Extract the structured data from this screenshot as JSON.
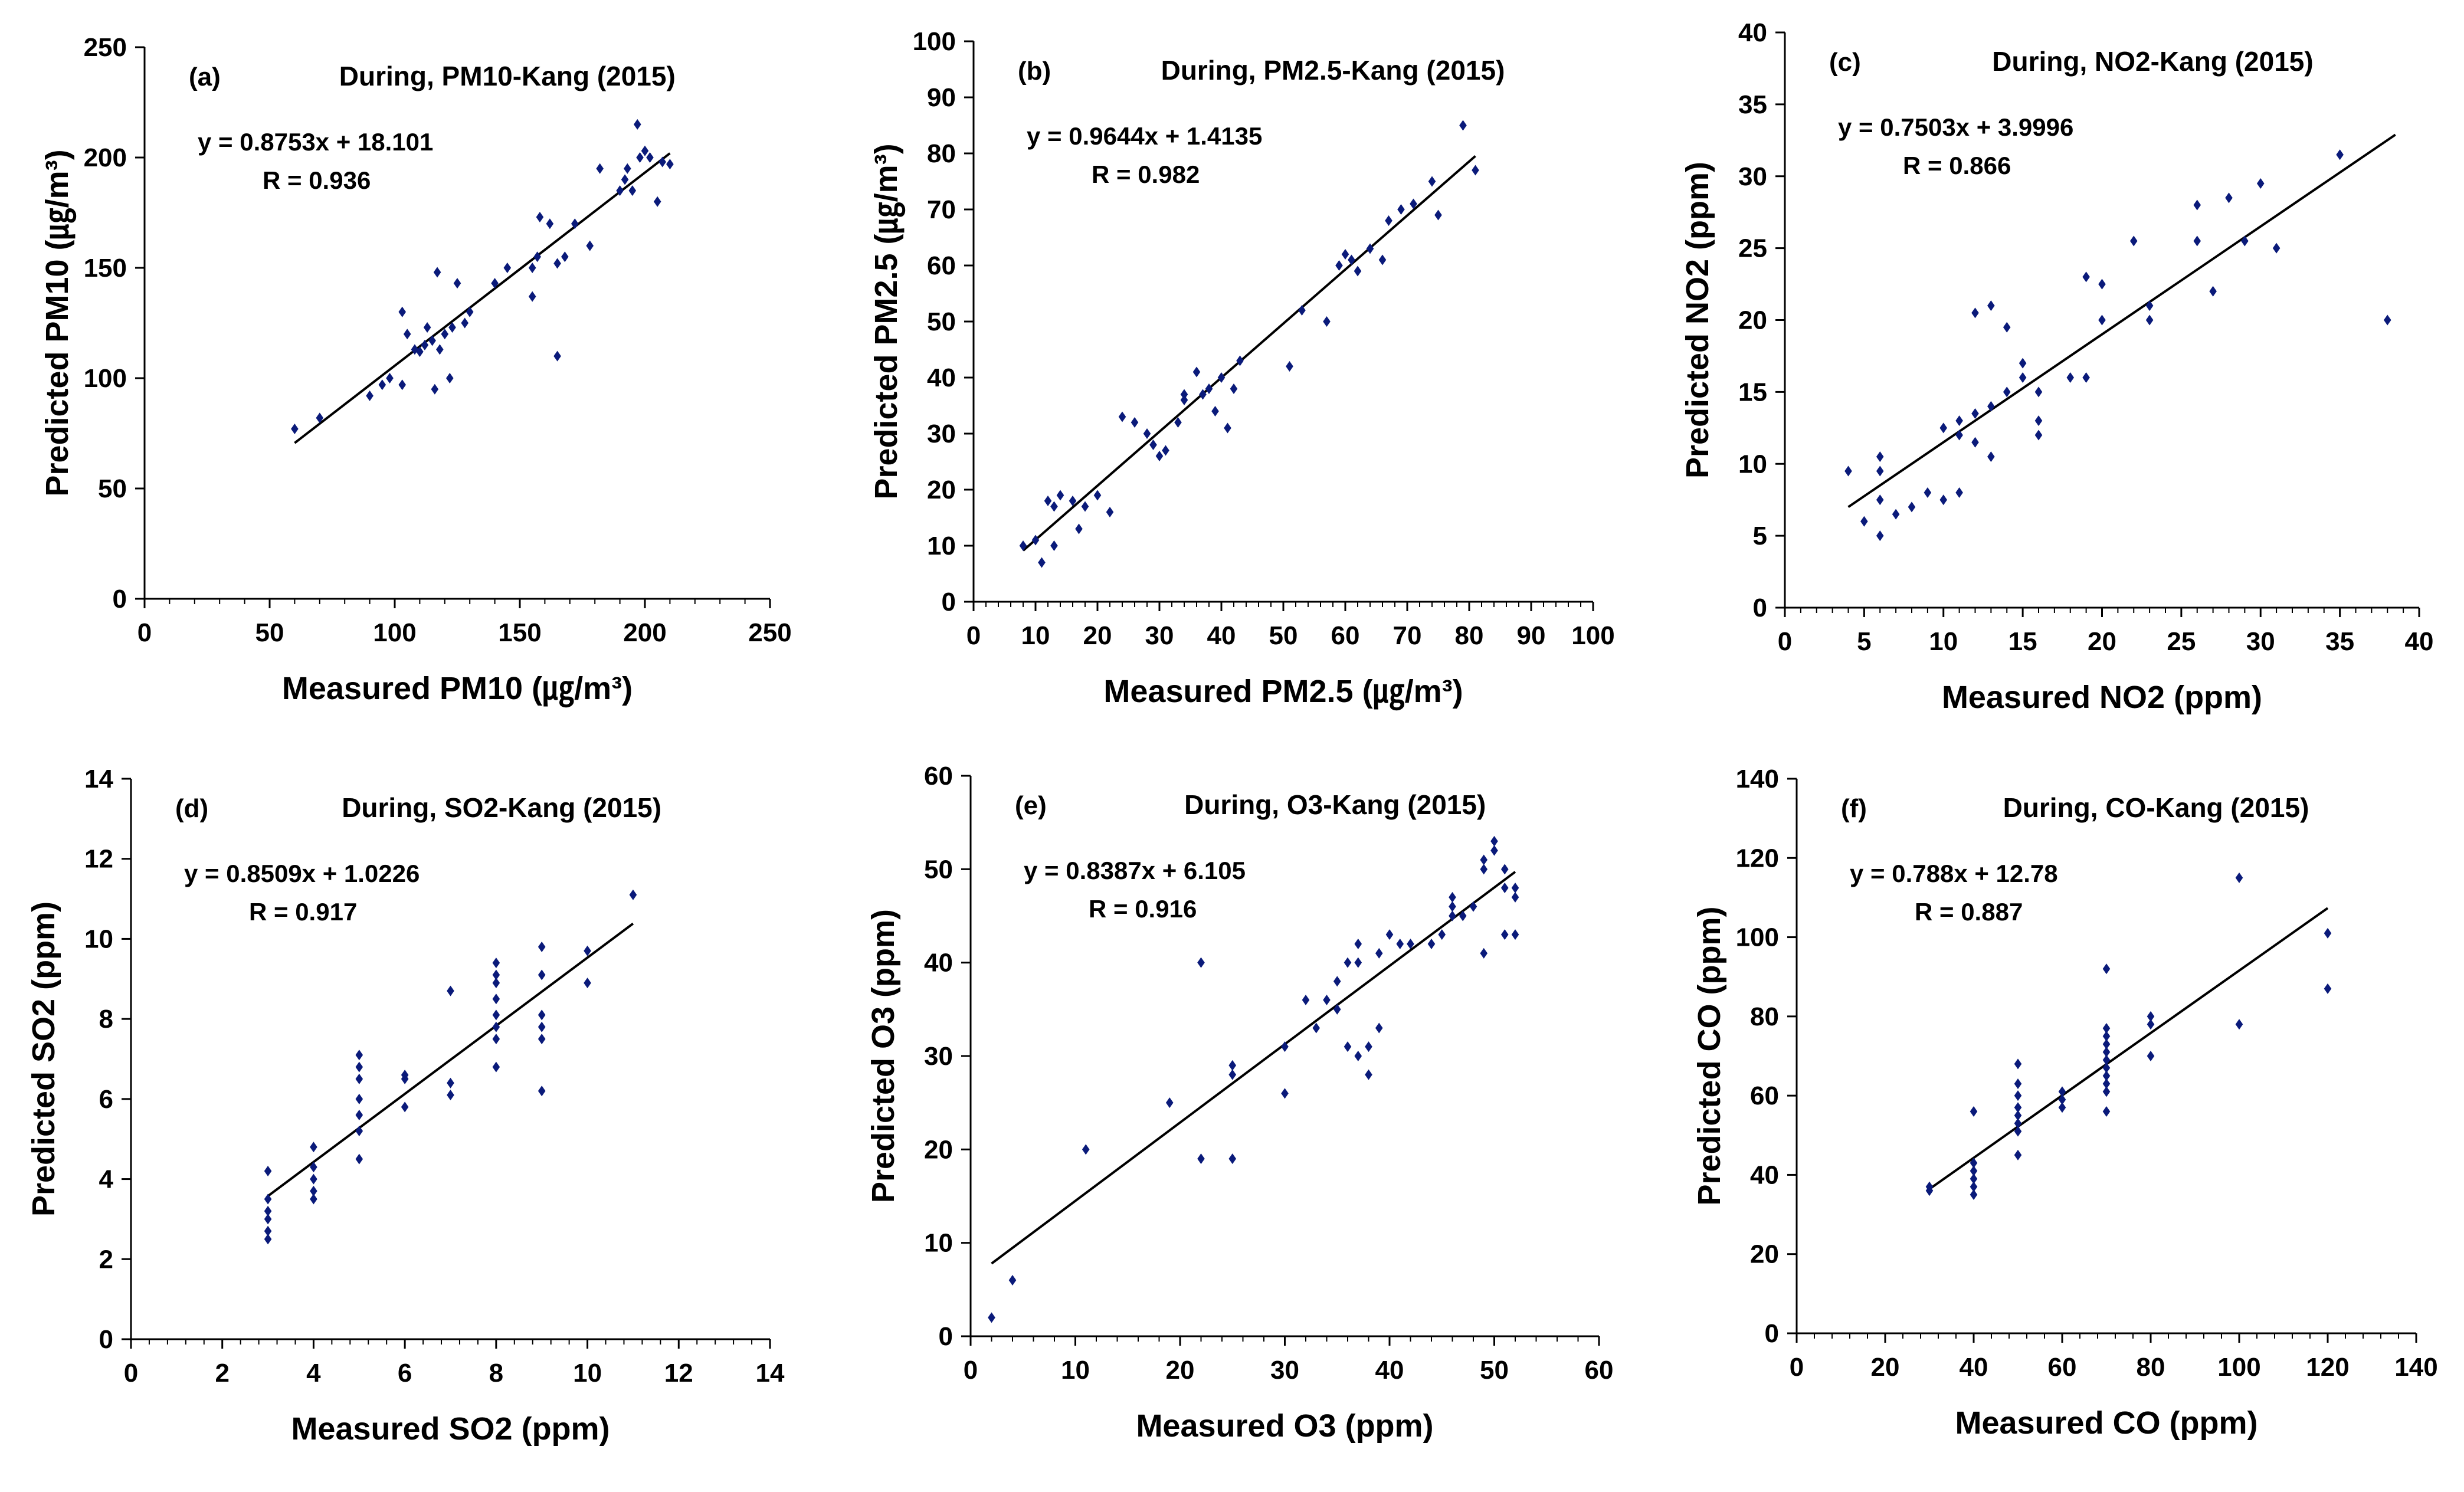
{
  "chart_data": [
    {
      "type": "scatter",
      "tag": "(a)",
      "title": "During, PM10-Kang (2015)",
      "equation": "y = 0.8753x + 18.101",
      "r_label": "R = 0.936",
      "xlabel": "Measured PM10 (㎍/m³)",
      "ylabel": "Predicted PM10 (㎍/m³)",
      "xlim": [
        0,
        250
      ],
      "ylim": [
        0,
        250
      ],
      "xticks": [
        0,
        50,
        100,
        150,
        200,
        250
      ],
      "yticks": [
        0,
        50,
        100,
        150,
        200,
        250
      ],
      "fit": {
        "slope": 0.8753,
        "intercept": 18.101,
        "x_range": [
          60,
          210
        ]
      },
      "points": [
        [
          60,
          77
        ],
        [
          70,
          82
        ],
        [
          90,
          92
        ],
        [
          95,
          97
        ],
        [
          98,
          100
        ],
        [
          103,
          97
        ],
        [
          103,
          130
        ],
        [
          105,
          120
        ],
        [
          108,
          113
        ],
        [
          110,
          112
        ],
        [
          112,
          115
        ],
        [
          113,
          123
        ],
        [
          115,
          117
        ],
        [
          116,
          95
        ],
        [
          117,
          148
        ],
        [
          118,
          113
        ],
        [
          120,
          120
        ],
        [
          122,
          100
        ],
        [
          123,
          123
        ],
        [
          125,
          143
        ],
        [
          128,
          125
        ],
        [
          130,
          130
        ],
        [
          140,
          143
        ],
        [
          145,
          150
        ],
        [
          155,
          137
        ],
        [
          155,
          150
        ],
        [
          157,
          155
        ],
        [
          158,
          173
        ],
        [
          162,
          170
        ],
        [
          165,
          110
        ],
        [
          165,
          152
        ],
        [
          168,
          155
        ],
        [
          172,
          170
        ],
        [
          178,
          160
        ],
        [
          182,
          195
        ],
        [
          190,
          185
        ],
        [
          192,
          190
        ],
        [
          193,
          195
        ],
        [
          195,
          185
        ],
        [
          197,
          215
        ],
        [
          198,
          200
        ],
        [
          200,
          203
        ],
        [
          202,
          200
        ],
        [
          205,
          180
        ],
        [
          207,
          198
        ],
        [
          210,
          197
        ]
      ]
    },
    {
      "type": "scatter",
      "tag": "(b)",
      "title": "During, PM2.5-Kang (2015)",
      "equation": "y = 0.9644x + 1.4135",
      "r_label": "R = 0.982",
      "xlabel": "Measured PM2.5 (㎍/m³)",
      "ylabel": "Predicted PM2.5 (㎍/m³)",
      "xlim": [
        0,
        100
      ],
      "ylim": [
        0,
        100
      ],
      "xticks": [
        0,
        10,
        20,
        30,
        40,
        50,
        60,
        70,
        80,
        90,
        100
      ],
      "yticks": [
        0,
        10,
        20,
        30,
        40,
        50,
        60,
        70,
        80,
        90,
        100
      ],
      "fit": {
        "slope": 0.9644,
        "intercept": 1.4135,
        "x_range": [
          8,
          81
        ]
      },
      "points": [
        [
          8,
          10
        ],
        [
          10,
          11
        ],
        [
          11,
          7
        ],
        [
          12,
          18
        ],
        [
          13,
          10
        ],
        [
          13,
          17
        ],
        [
          14,
          19
        ],
        [
          16,
          18
        ],
        [
          17,
          13
        ],
        [
          18,
          17
        ],
        [
          20,
          19
        ],
        [
          22,
          16
        ],
        [
          24,
          33
        ],
        [
          26,
          32
        ],
        [
          28,
          30
        ],
        [
          29,
          28
        ],
        [
          30,
          26
        ],
        [
          31,
          27
        ],
        [
          33,
          32
        ],
        [
          34,
          36
        ],
        [
          34,
          37
        ],
        [
          36,
          41
        ],
        [
          37,
          37
        ],
        [
          38,
          38
        ],
        [
          39,
          34
        ],
        [
          40,
          40
        ],
        [
          41,
          31
        ],
        [
          42,
          38
        ],
        [
          43,
          43
        ],
        [
          51,
          42
        ],
        [
          53,
          52
        ],
        [
          57,
          50
        ],
        [
          59,
          60
        ],
        [
          60,
          62
        ],
        [
          61,
          61
        ],
        [
          62,
          59
        ],
        [
          64,
          63
        ],
        [
          66,
          61
        ],
        [
          67,
          68
        ],
        [
          69,
          70
        ],
        [
          71,
          71
        ],
        [
          74,
          75
        ],
        [
          75,
          69
        ],
        [
          79,
          85
        ],
        [
          81,
          77
        ]
      ]
    },
    {
      "type": "scatter",
      "tag": "(c)",
      "title": "During, NO2-Kang (2015)",
      "equation": "y = 0.7503x + 3.9996",
      "r_label": "R = 0.866",
      "xlabel": "Measured NO2 (ppm)",
      "ylabel": "Predicted NO2 (ppm)",
      "xlim": [
        0,
        40
      ],
      "ylim": [
        0,
        40
      ],
      "xticks": [
        0,
        5,
        10,
        15,
        20,
        25,
        30,
        35,
        40
      ],
      "yticks": [
        0,
        5,
        10,
        15,
        20,
        25,
        30,
        35,
        40
      ],
      "fit": {
        "slope": 0.7503,
        "intercept": 3.9996,
        "x_range": [
          4,
          38.5
        ]
      },
      "points": [
        [
          4,
          9.5
        ],
        [
          5,
          6
        ],
        [
          6,
          5
        ],
        [
          6,
          7.5
        ],
        [
          6,
          9.5
        ],
        [
          6,
          10.5
        ],
        [
          7,
          6.5
        ],
        [
          8,
          7
        ],
        [
          9,
          8
        ],
        [
          10,
          12.5
        ],
        [
          10,
          7.5
        ],
        [
          11,
          8
        ],
        [
          11,
          12
        ],
        [
          11,
          13
        ],
        [
          12,
          11.5
        ],
        [
          12,
          13.5
        ],
        [
          12,
          20.5
        ],
        [
          13,
          10.5
        ],
        [
          13,
          14
        ],
        [
          13,
          21
        ],
        [
          14,
          15
        ],
        [
          14,
          19.5
        ],
        [
          15,
          16
        ],
        [
          15,
          17
        ],
        [
          16,
          12
        ],
        [
          16,
          13
        ],
        [
          16,
          15
        ],
        [
          18,
          16
        ],
        [
          19,
          23
        ],
        [
          19,
          16
        ],
        [
          20,
          20
        ],
        [
          20,
          22.5
        ],
        [
          22,
          25.5
        ],
        [
          23,
          20
        ],
        [
          23,
          21
        ],
        [
          26,
          25.5
        ],
        [
          26,
          28
        ],
        [
          27,
          22
        ],
        [
          28,
          28.5
        ],
        [
          29,
          25.5
        ],
        [
          30,
          29.5
        ],
        [
          31,
          25
        ],
        [
          35,
          31.5
        ],
        [
          38,
          20
        ]
      ]
    },
    {
      "type": "scatter",
      "tag": "(d)",
      "title": "During, SO2-Kang (2015)",
      "equation": "y = 0.8509x + 1.0226",
      "r_label": "R = 0.917",
      "xlabel": "Measured SO2 (ppm)",
      "ylabel": "Predicted SO2 (ppm)",
      "xlim": [
        0,
        14
      ],
      "ylim": [
        0,
        14
      ],
      "xticks": [
        0,
        2,
        4,
        6,
        8,
        10,
        12,
        14
      ],
      "yticks": [
        0,
        2,
        4,
        6,
        8,
        10,
        12,
        14
      ],
      "fit": {
        "slope": 0.8509,
        "intercept": 1.0226,
        "x_range": [
          3,
          11
        ]
      },
      "points": [
        [
          3,
          2.5
        ],
        [
          3,
          2.7
        ],
        [
          3,
          3.0
        ],
        [
          3,
          3.2
        ],
        [
          3,
          3.5
        ],
        [
          3,
          4.2
        ],
        [
          4,
          3.5
        ],
        [
          4,
          3.7
        ],
        [
          4,
          4.0
        ],
        [
          4,
          4.3
        ],
        [
          4,
          4.8
        ],
        [
          5,
          4.5
        ],
        [
          5,
          5.2
        ],
        [
          5,
          5.6
        ],
        [
          5,
          6.0
        ],
        [
          5,
          6.5
        ],
        [
          5,
          6.8
        ],
        [
          5,
          7.1
        ],
        [
          6,
          5.8
        ],
        [
          6,
          6.5
        ],
        [
          6,
          6.6
        ],
        [
          7,
          6.1
        ],
        [
          7,
          6.4
        ],
        [
          7,
          8.7
        ],
        [
          8,
          6.8
        ],
        [
          8,
          7.5
        ],
        [
          8,
          7.8
        ],
        [
          8,
          8.1
        ],
        [
          8,
          8.5
        ],
        [
          8,
          8.9
        ],
        [
          8,
          9.1
        ],
        [
          8,
          9.4
        ],
        [
          9,
          6.2
        ],
        [
          9,
          7.5
        ],
        [
          9,
          7.8
        ],
        [
          9,
          8.1
        ],
        [
          9,
          9.1
        ],
        [
          9,
          9.8
        ],
        [
          10,
          8.9
        ],
        [
          10,
          9.7
        ],
        [
          11,
          11.1
        ]
      ]
    },
    {
      "type": "scatter",
      "tag": "(e)",
      "title": "During, O3-Kang (2015)",
      "equation": "y = 0.8387x + 6.105",
      "r_label": "R = 0.916",
      "xlabel": "Measured O3 (ppm)",
      "ylabel": "Predicted O3 (ppm)",
      "xlim": [
        0,
        60
      ],
      "ylim": [
        0,
        60
      ],
      "xticks": [
        0,
        10,
        20,
        30,
        40,
        50,
        60
      ],
      "yticks": [
        0,
        10,
        20,
        30,
        40,
        50,
        60
      ],
      "fit": {
        "slope": 0.8387,
        "intercept": 6.105,
        "x_range": [
          2,
          52
        ]
      },
      "points": [
        [
          2,
          2
        ],
        [
          4,
          6
        ],
        [
          11,
          20
        ],
        [
          19,
          25
        ],
        [
          22,
          40
        ],
        [
          22,
          19
        ],
        [
          25,
          28
        ],
        [
          25,
          29
        ],
        [
          25,
          19
        ],
        [
          30,
          26
        ],
        [
          30,
          31
        ],
        [
          32,
          36
        ],
        [
          33,
          33
        ],
        [
          34,
          36
        ],
        [
          35,
          35
        ],
        [
          35,
          38
        ],
        [
          36,
          40
        ],
        [
          36,
          31
        ],
        [
          37,
          40
        ],
        [
          37,
          42
        ],
        [
          37,
          30
        ],
        [
          38,
          31
        ],
        [
          38,
          28
        ],
        [
          39,
          41
        ],
        [
          39,
          33
        ],
        [
          40,
          43
        ],
        [
          41,
          42
        ],
        [
          42,
          42
        ],
        [
          44,
          42
        ],
        [
          45,
          43
        ],
        [
          46,
          45
        ],
        [
          46,
          46
        ],
        [
          46,
          47
        ],
        [
          47,
          45
        ],
        [
          48,
          46
        ],
        [
          49,
          41
        ],
        [
          49,
          50
        ],
        [
          49,
          51
        ],
        [
          50,
          52
        ],
        [
          50,
          53
        ],
        [
          51,
          48
        ],
        [
          51,
          50
        ],
        [
          51,
          43
        ],
        [
          52,
          47
        ],
        [
          52,
          48
        ],
        [
          52,
          43
        ]
      ]
    },
    {
      "type": "scatter",
      "tag": "(f)",
      "title": "During, CO-Kang (2015)",
      "equation": "y = 0.788x + 12.78",
      "r_label": "R = 0.887",
      "xlabel": "Measured CO (ppm)",
      "ylabel": "Predicted CO (ppm)",
      "xlim": [
        0,
        140
      ],
      "ylim": [
        0,
        140
      ],
      "xticks": [
        0,
        20,
        40,
        60,
        80,
        100,
        120,
        140
      ],
      "yticks": [
        0,
        20,
        40,
        60,
        80,
        100,
        120,
        140
      ],
      "fit": {
        "slope": 0.788,
        "intercept": 12.78,
        "x_range": [
          30,
          120
        ]
      },
      "points": [
        [
          30,
          36
        ],
        [
          30,
          37
        ],
        [
          40,
          35
        ],
        [
          40,
          37
        ],
        [
          40,
          39
        ],
        [
          40,
          41
        ],
        [
          40,
          43
        ],
        [
          40,
          56
        ],
        [
          50,
          45
        ],
        [
          50,
          51
        ],
        [
          50,
          53
        ],
        [
          50,
          55
        ],
        [
          50,
          57
        ],
        [
          50,
          60
        ],
        [
          50,
          63
        ],
        [
          50,
          68
        ],
        [
          60,
          57
        ],
        [
          60,
          59
        ],
        [
          60,
          61
        ],
        [
          70,
          56
        ],
        [
          70,
          61
        ],
        [
          70,
          63
        ],
        [
          70,
          65
        ],
        [
          70,
          67
        ],
        [
          70,
          69
        ],
        [
          70,
          71
        ],
        [
          70,
          73
        ],
        [
          70,
          75
        ],
        [
          70,
          77
        ],
        [
          70,
          92
        ],
        [
          80,
          70
        ],
        [
          80,
          78
        ],
        [
          80,
          80
        ],
        [
          100,
          78
        ],
        [
          100,
          115
        ],
        [
          120,
          87
        ],
        [
          120,
          101
        ]
      ]
    }
  ]
}
